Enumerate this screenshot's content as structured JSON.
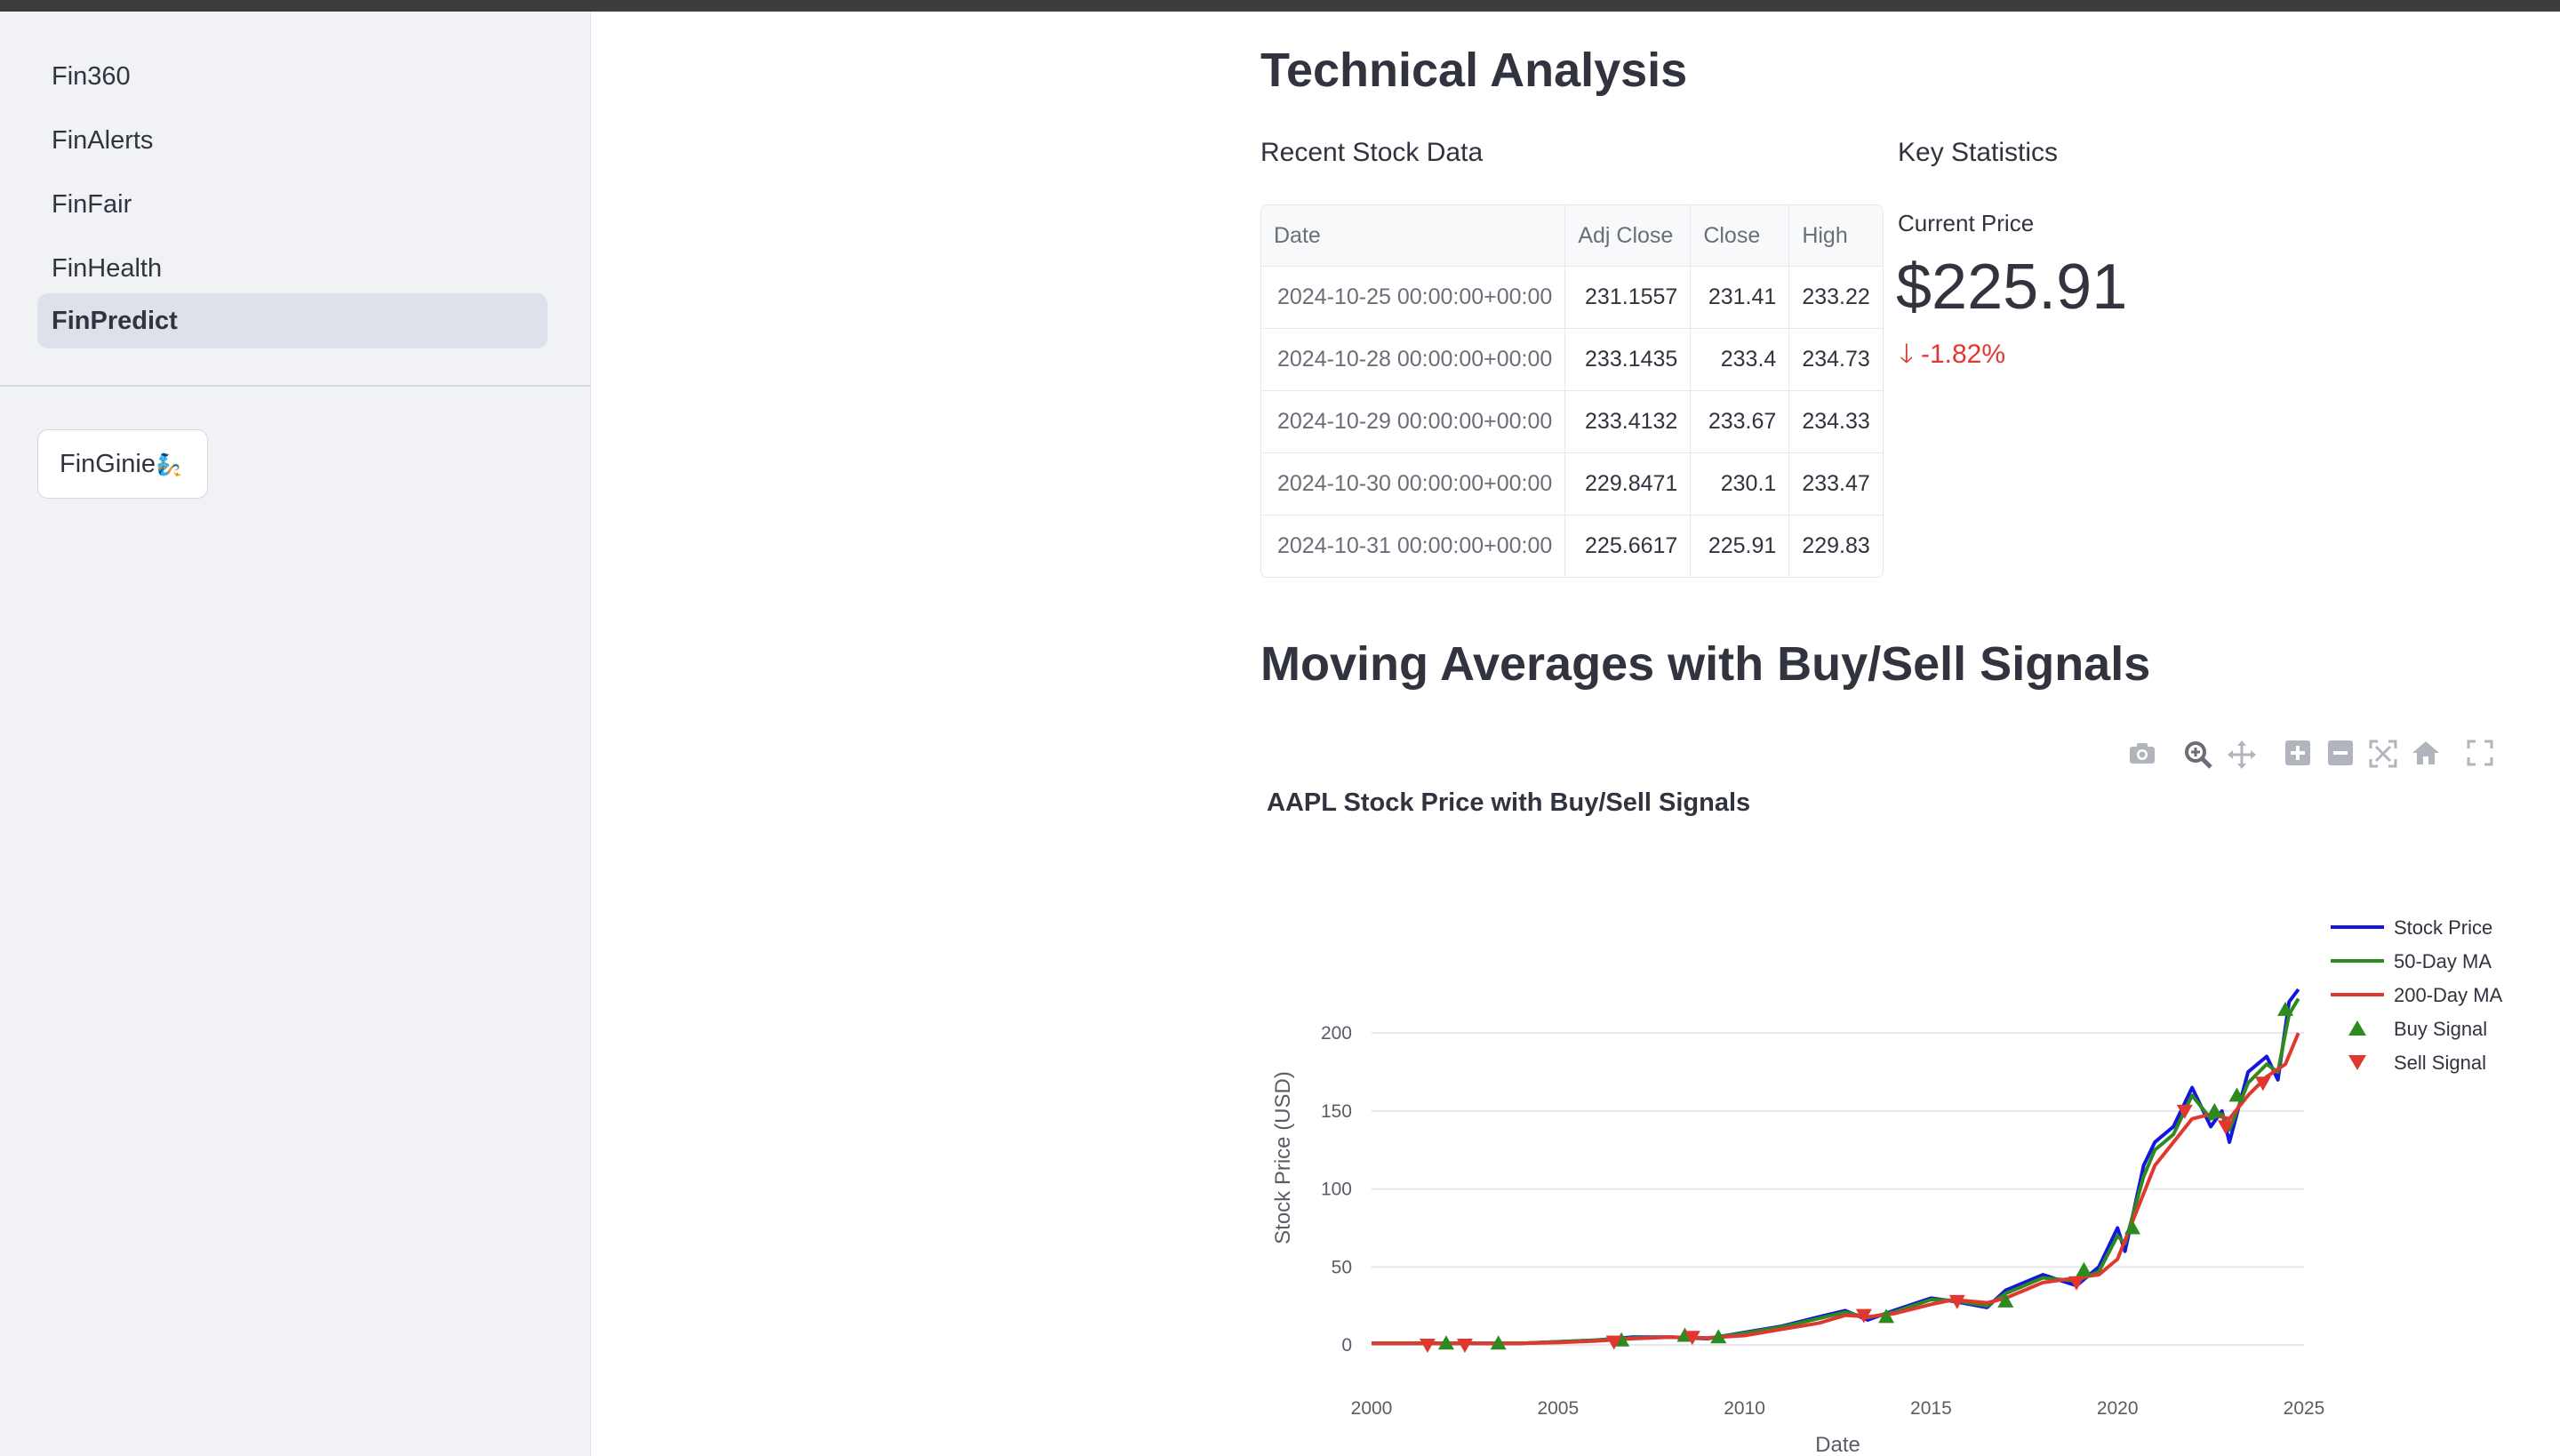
{
  "sidebar": {
    "items": [
      {
        "label": "Fin360"
      },
      {
        "label": "FinAlerts"
      },
      {
        "label": "FinFair"
      },
      {
        "label": "FinHealth"
      },
      {
        "label": "FinPredict",
        "active": true
      }
    ],
    "ginie_label": "FinGinie",
    "ginie_emoji": "🧞"
  },
  "main": {
    "title": "Technical Analysis",
    "recent_label": "Recent Stock Data",
    "stats_label": "Key Statistics",
    "table": {
      "headers": [
        "Date",
        "Adj Close",
        "Close",
        "High"
      ],
      "rows": [
        [
          "2024-10-25 00:00:00+00:00",
          "231.1557",
          "231.41",
          "233.22"
        ],
        [
          "2024-10-28 00:00:00+00:00",
          "233.1435",
          "233.4",
          "234.73"
        ],
        [
          "2024-10-29 00:00:00+00:00",
          "233.4132",
          "233.67",
          "234.33"
        ],
        [
          "2024-10-30 00:00:00+00:00",
          "229.8471",
          "230.1",
          "233.47"
        ],
        [
          "2024-10-31 00:00:00+00:00",
          "225.6617",
          "225.91",
          "229.83"
        ]
      ]
    },
    "metric": {
      "label": "Current Price",
      "value": "$225.91",
      "delta": "-1.82%",
      "delta_color": "#e0382f"
    },
    "section_title": "Moving Averages with Buy/Sell Signals"
  },
  "modebar": [
    "camera-icon",
    "zoom-icon",
    "pan-icon",
    "zoom-in-icon",
    "zoom-out-icon",
    "autoscale-icon",
    "reset-axes-icon",
    "fullscreen-icon"
  ],
  "chart_data": {
    "type": "line",
    "title": "AAPL Stock Price with Buy/Sell Signals",
    "xlabel": "Date",
    "ylabel": "Stock Price (USD)",
    "xlim": [
      2000,
      2025
    ],
    "ylim": [
      0,
      240
    ],
    "x_ticks": [
      2000,
      2005,
      2010,
      2015,
      2020,
      2025
    ],
    "y_ticks": [
      0,
      50,
      100,
      150,
      200
    ],
    "grid": true,
    "legend_position": "right",
    "series": [
      {
        "name": "Stock Price",
        "color": "#1515e0",
        "x": [
          2000,
          2002,
          2004,
          2005,
          2006,
          2007,
          2008,
          2009,
          2010,
          2011,
          2012,
          2012.7,
          2013.3,
          2014,
          2015,
          2015.6,
          2016.5,
          2017,
          2018,
          2018.9,
          2019.5,
          2020,
          2020.2,
          2020.7,
          2021,
          2021.5,
          2022,
          2022.5,
          2022.8,
          2023,
          2023.5,
          2024,
          2024.3,
          2024.6,
          2024.85
        ],
        "y": [
          1,
          1,
          1,
          2,
          3,
          5,
          5,
          4,
          8,
          12,
          18,
          22,
          16,
          22,
          30,
          28,
          24,
          35,
          45,
          38,
          50,
          75,
          60,
          115,
          130,
          140,
          165,
          140,
          150,
          130,
          175,
          185,
          170,
          220,
          228
        ]
      },
      {
        "name": "50-Day MA",
        "color": "#2c8a1e",
        "x": [
          2000,
          2002,
          2004,
          2005,
          2006,
          2007,
          2008,
          2009,
          2010,
          2011,
          2012,
          2012.7,
          2013.3,
          2014,
          2015,
          2015.6,
          2016.5,
          2017,
          2018,
          2018.9,
          2019.5,
          2020,
          2020.2,
          2020.7,
          2021,
          2021.5,
          2022,
          2022.5,
          2022.8,
          2023,
          2023.5,
          2024,
          2024.3,
          2024.6,
          2024.85
        ],
        "y": [
          1,
          1,
          1,
          2,
          3,
          4.5,
          5,
          4.2,
          7.5,
          11.5,
          17,
          21,
          17.5,
          21,
          29,
          28.5,
          25,
          33,
          43,
          41,
          47,
          70,
          65,
          108,
          125,
          135,
          160,
          145,
          148,
          138,
          168,
          180,
          175,
          212,
          222
        ]
      },
      {
        "name": "200-Day MA",
        "color": "#e0382f",
        "x": [
          2000,
          2002,
          2004,
          2005,
          2006,
          2007,
          2008,
          2009,
          2010,
          2011,
          2012,
          2012.7,
          2013.3,
          2014,
          2015,
          2015.6,
          2016.5,
          2017,
          2018,
          2018.9,
          2019.5,
          2020,
          2020.5,
          2021,
          2021.5,
          2022,
          2022.5,
          2023,
          2023.5,
          2024,
          2024.5,
          2024.85
        ],
        "y": [
          1,
          1,
          1,
          1.5,
          2.5,
          4,
          5,
          4.5,
          6,
          10,
          14,
          19,
          18,
          20,
          26,
          29,
          27,
          30,
          40,
          43,
          45,
          55,
          85,
          115,
          130,
          145,
          148,
          145,
          160,
          172,
          180,
          200
        ]
      },
      {
        "name": "Buy Signal",
        "color": "#2c8a1e",
        "marker": "triangle-up",
        "x": [
          2002,
          2003.4,
          2006.7,
          2008.4,
          2009.3,
          2013.8,
          2017,
          2019.1,
          2020.4,
          2022.6,
          2023.2,
          2024.5
        ],
        "y": [
          1,
          1,
          3,
          6,
          5,
          18,
          28,
          48,
          75,
          150,
          160,
          215
        ]
      },
      {
        "name": "Sell Signal",
        "color": "#e0382f",
        "marker": "triangle-down",
        "x": [
          2001.5,
          2002.5,
          2006.5,
          2008.6,
          2013.2,
          2015.7,
          2018.9,
          2021.8,
          2022.9,
          2023.9
        ],
        "y": [
          0,
          0,
          2,
          5,
          19,
          28,
          40,
          150,
          140,
          168
        ]
      }
    ]
  }
}
